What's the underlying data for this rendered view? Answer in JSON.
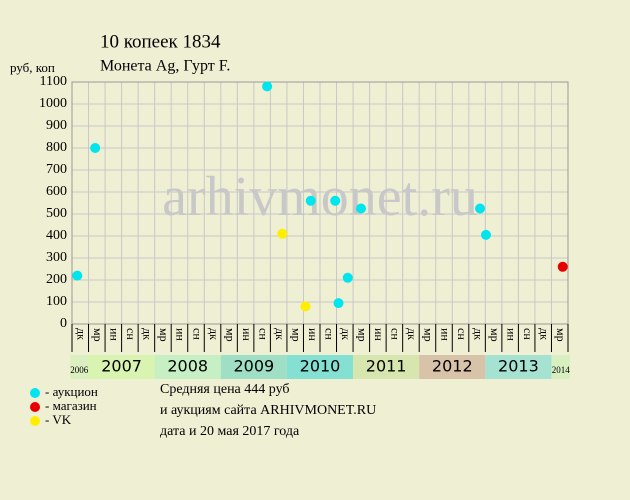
{
  "chart_data": {
    "type": "scatter",
    "title": "10 копеек 1834",
    "subtitle": "Монета Ag, Гурт F.",
    "y_label": "руб, коп",
    "watermark": "arhivmonet.ru",
    "xlim": [
      2006.75,
      2014.25
    ],
    "ylim": [
      0,
      1100
    ],
    "yticks": [
      0,
      100,
      200,
      300,
      400,
      500,
      600,
      700,
      800,
      900,
      1000,
      1100
    ],
    "grid": true,
    "series": [
      {
        "name": "аукцион",
        "color": "#00e5ee",
        "x": [
          2006.83,
          2007.1,
          2009.7,
          2010.36,
          2010.73,
          2010.78,
          2010.92,
          2011.12,
          2012.92,
          2013.01
        ],
        "values": [
          220,
          800,
          1080,
          560,
          560,
          95,
          210,
          525,
          525,
          405
        ]
      },
      {
        "name": "магазин",
        "color": "#e80000",
        "x": [
          2014.17
        ],
        "values": [
          260
        ]
      },
      {
        "name": "VK",
        "color": "#ffee00",
        "x": [
          2009.93,
          2010.28
        ],
        "values": [
          410,
          80
        ]
      }
    ],
    "quarter_labels": [
      "дк",
      "мр",
      "ин",
      "сн",
      "дк",
      "мр",
      "ин",
      "сн",
      "дк",
      "мр",
      "ин",
      "сн",
      "дк",
      "мр",
      "ин",
      "сн",
      "дк",
      "мр",
      "ин",
      "сн",
      "дк",
      "мр",
      "ин",
      "сн",
      "дк",
      "мр",
      "ин",
      "сн",
      "дк",
      "мр"
    ],
    "year_bands": [
      {
        "label": "2006",
        "color": "#dcefc0"
      },
      {
        "label": "2007",
        "color": "#d8f4b0"
      },
      {
        "label": "2008",
        "color": "#c6efc4"
      },
      {
        "label": "2009",
        "color": "#9fdfc6"
      },
      {
        "label": "2010",
        "color": "#84e0d2"
      },
      {
        "label": "2011",
        "color": "#d6e6ae"
      },
      {
        "label": "2012",
        "color": "#d8c2a8"
      },
      {
        "label": "2013",
        "color": "#a6e2d2"
      },
      {
        "label": "2014",
        "color": "#d8f0c0"
      }
    ],
    "footer": [
      "Средняя цена 444 руб",
      "и аукциям сайта ARHIVMONET.RU",
      "дата и 20 мая 2017 года"
    ]
  }
}
